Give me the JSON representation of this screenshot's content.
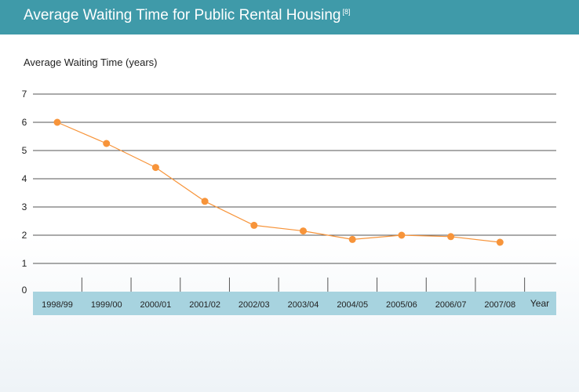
{
  "header": {
    "title": "Average Waiting Time for Public Rental Housing",
    "footnote": "[8]"
  },
  "colors": {
    "header_bg": "#3f9aa9",
    "axis_band": "#a7d3df",
    "series": "#f7943a",
    "gridline": "#555555"
  },
  "chart_data": {
    "type": "line",
    "title": "Average Waiting Time for Public Rental Housing",
    "ylabel": "Average Waiting Time (years)",
    "xlabel": "Year",
    "ylim": [
      0,
      7
    ],
    "yticks": [
      "0",
      "1",
      "2",
      "3",
      "4",
      "5",
      "6",
      "7"
    ],
    "grid": true,
    "categories": [
      "1998/99",
      "1999/00",
      "2000/01",
      "2001/02",
      "2002/03",
      "2003/04",
      "2004/05",
      "2005/06",
      "2006/07",
      "2007/08"
    ],
    "series": [
      {
        "values": [
          6.0,
          5.25,
          4.4,
          3.2,
          2.35,
          2.15,
          1.85,
          2.0,
          1.95,
          1.75
        ]
      }
    ]
  }
}
